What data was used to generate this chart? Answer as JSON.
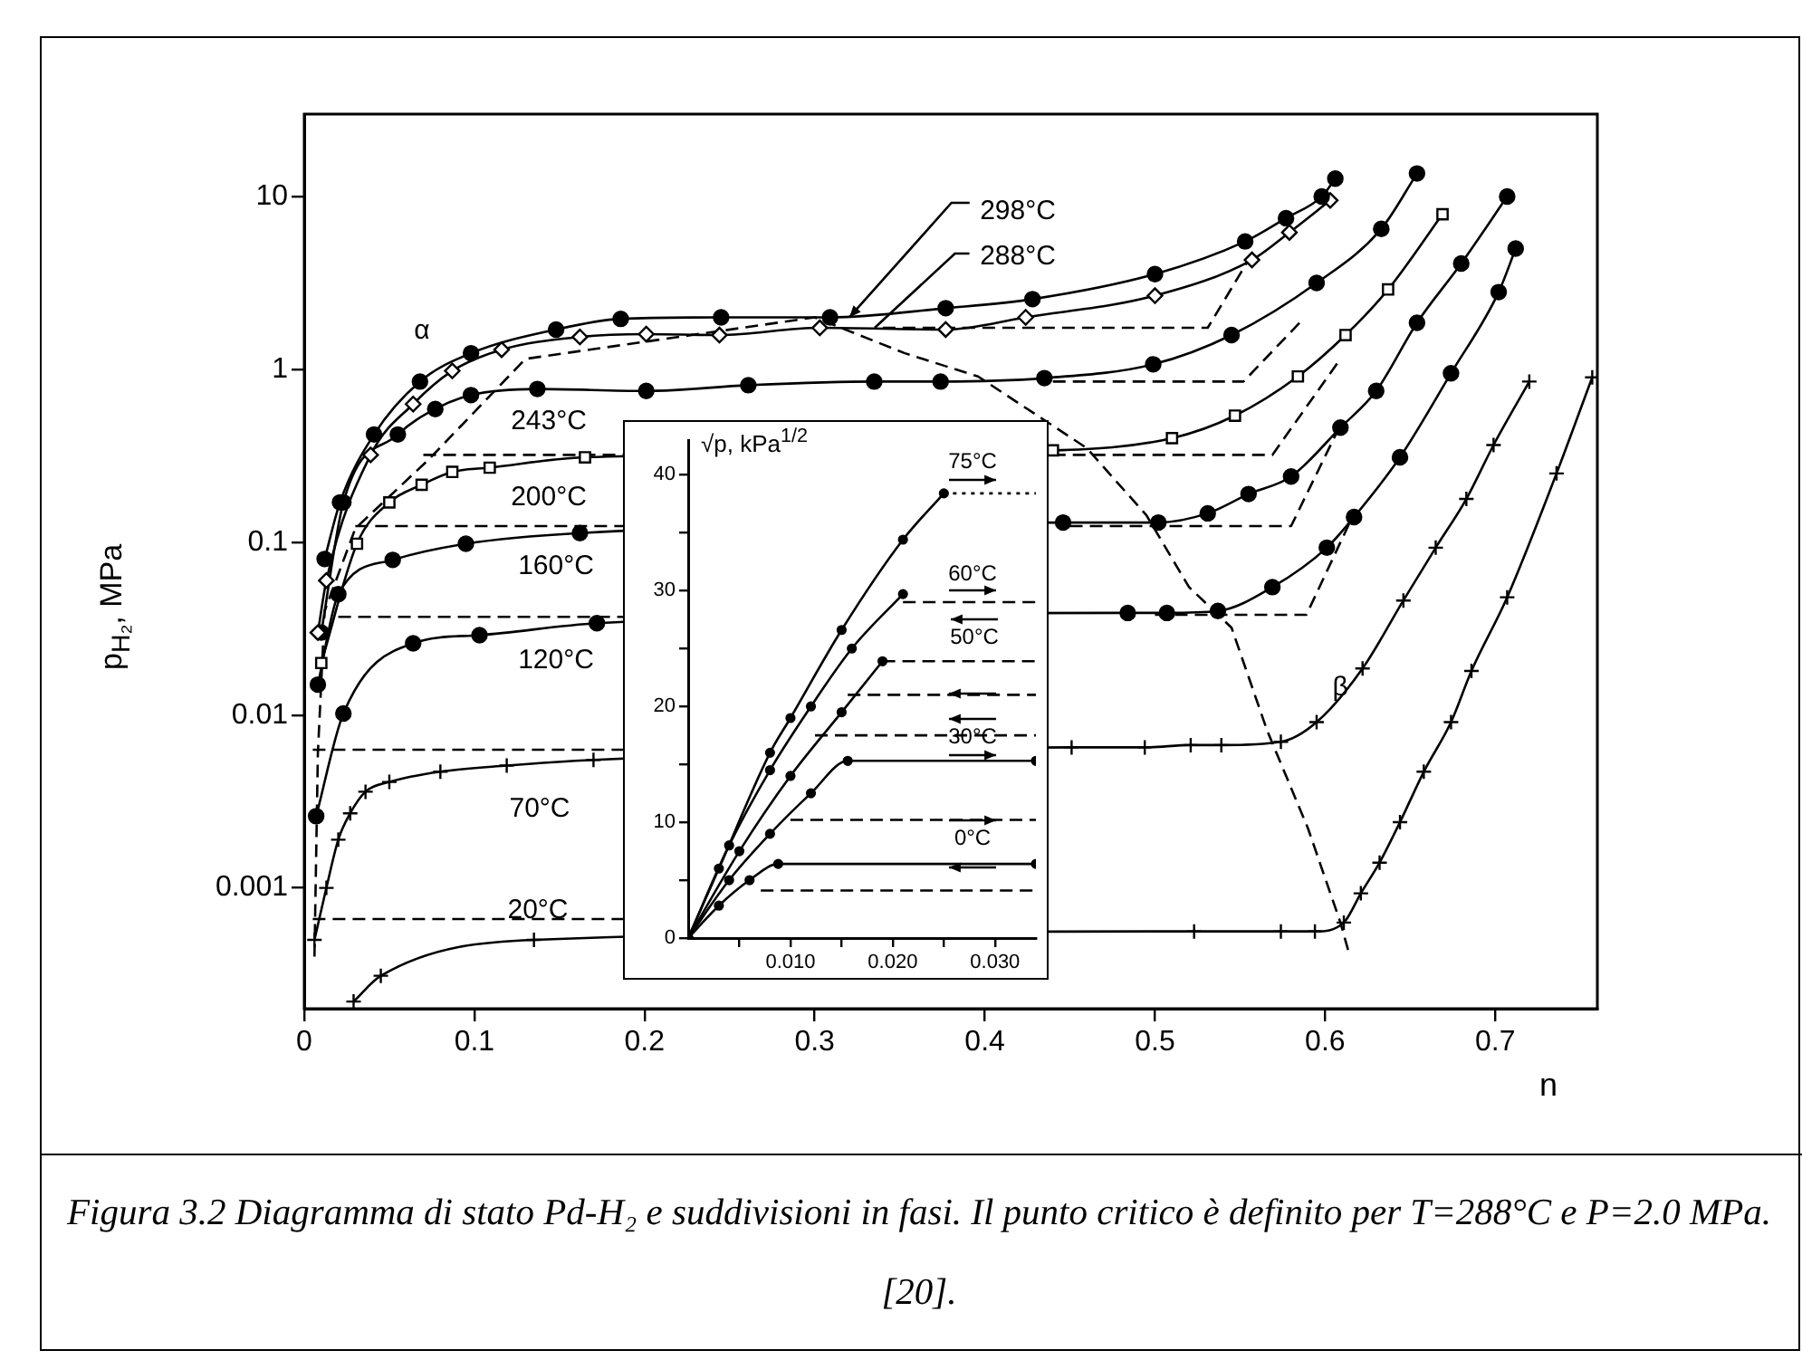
{
  "chart_data": [
    {
      "type": "line",
      "xlabel": "n",
      "ylabel": "p$_{H₂}$, MPa",
      "log": "y",
      "xlim": [
        0,
        0.76
      ],
      "ylim": [
        0.0002,
        30
      ],
      "xticks": [
        0,
        0.1,
        0.2,
        0.3,
        0.4,
        0.5,
        0.6,
        0.7
      ],
      "yticks": [
        0.001,
        0.01,
        0.1,
        1,
        10
      ],
      "series": [
        {
          "color": "#000000",
          "marker": "circle",
          "x": [
            0.012,
            0.021,
            0.041,
            0.068,
            0.098,
            0.148,
            0.186,
            0.245,
            0.309,
            0.377,
            0.428,
            0.5,
            0.553,
            0.577,
            0.598,
            0.606
          ],
          "values": [
            0.08,
            0.17,
            0.42,
            0.85,
            1.24,
            1.7,
            1.96,
            2.0,
            2.0,
            2.26,
            2.55,
            3.56,
            5.5,
            7.5,
            10,
            12.7
          ]
        },
        {
          "color": "#000000",
          "marker": "diamond",
          "x": [
            0.008,
            0.013,
            0.039,
            0.064,
            0.087,
            0.116,
            0.162,
            0.201,
            0.244,
            0.303,
            0.377,
            0.424,
            0.5,
            0.557,
            0.579,
            0.603
          ],
          "values": [
            0.03,
            0.06,
            0.32,
            0.63,
            0.98,
            1.3,
            1.54,
            1.6,
            1.58,
            1.74,
            1.7,
            2.0,
            2.67,
            4.3,
            6.2,
            9.5
          ]
        },
        {
          "color": "#000000",
          "marker": "circle",
          "x": [
            0.01,
            0.023,
            0.055,
            0.077,
            0.098,
            0.137,
            0.201,
            0.261,
            0.335,
            0.374,
            0.435,
            0.499,
            0.545,
            0.595,
            0.633,
            0.654
          ],
          "values": [
            0.03,
            0.17,
            0.42,
            0.59,
            0.71,
            0.77,
            0.75,
            0.81,
            0.85,
            0.85,
            0.89,
            1.07,
            1.58,
            3.16,
            6.5,
            13.6
          ]
        },
        {
          "color": "#000000",
          "marker": "square",
          "x": [
            0.01,
            0.031,
            0.05,
            0.069,
            0.087,
            0.109,
            0.165,
            0.44,
            0.51,
            0.547,
            0.584,
            0.612,
            0.637,
            0.669
          ],
          "values": [
            0.02,
            0.098,
            0.17,
            0.215,
            0.255,
            0.27,
            0.31,
            0.34,
            0.4,
            0.54,
            0.91,
            1.58,
            2.9,
            7.9
          ]
        },
        {
          "color": "#000000",
          "marker": "circle",
          "x": [
            0.008,
            0.02,
            0.052,
            0.095,
            0.162,
            0.446,
            0.502,
            0.531,
            0.555,
            0.58,
            0.609,
            0.63,
            0.654,
            0.68,
            0.707
          ],
          "values": [
            0.015,
            0.05,
            0.079,
            0.098,
            0.113,
            0.13,
            0.13,
            0.147,
            0.19,
            0.24,
            0.46,
            0.75,
            1.86,
            4.1,
            10
          ]
        },
        {
          "color": "#000000",
          "marker": "circle",
          "x": [
            0.007,
            0.023,
            0.064,
            0.103,
            0.172,
            0.484,
            0.507,
            0.537,
            0.569,
            0.601,
            0.617,
            0.644,
            0.674,
            0.702,
            0.712
          ],
          "values": [
            0.0026,
            0.0102,
            0.026,
            0.029,
            0.034,
            0.039,
            0.039,
            0.04,
            0.055,
            0.093,
            0.14,
            0.31,
            0.95,
            2.8,
            5
          ]
        },
        {
          "color": "#000000",
          "marker": "cross",
          "x": [
            0.006,
            0.013,
            0.02,
            0.027,
            0.036,
            0.05,
            0.08,
            0.119,
            0.17,
            0.451,
            0.494,
            0.521,
            0.539,
            0.574,
            0.595,
            0.622,
            0.646,
            0.665,
            0.683,
            0.699,
            0.72
          ],
          "values": [
            0.0005,
            0.001,
            0.0019,
            0.0027,
            0.0036,
            0.0041,
            0.0047,
            0.0051,
            0.0055,
            0.0065,
            0.0065,
            0.0067,
            0.0067,
            0.007,
            0.0091,
            0.0186,
            0.046,
            0.093,
            0.178,
            0.365,
            0.85
          ]
        },
        {
          "color": "#000000",
          "marker": "cross",
          "x": [
            0.029,
            0.045,
            0.135,
            0.523,
            0.574,
            0.594,
            0.611,
            0.621,
            0.632,
            0.644,
            0.658,
            0.674,
            0.686,
            0.707,
            0.736,
            0.757
          ],
          "values": [
            0.00022,
            0.00031,
            0.0005,
            0.00056,
            0.00056,
            0.00056,
            0.00063,
            0.00093,
            0.0014,
            0.0024,
            0.0047,
            0.0091,
            0.018,
            0.048,
            0.25,
            0.9
          ]
        },
        {
          "color": "#000000",
          "marker": "none",
          "line_style": "dashed",
          "x": [
            0.006,
            0.008,
            0.012,
            0.03,
            0.073,
            0.13,
            0.3,
            0.353,
            0.396,
            0.46,
            0.495,
            0.52,
            0.545,
            0.566,
            0.59,
            0.609,
            0.614
          ],
          "values": [
            0.0004,
            0.006,
            0.04,
            0.12,
            0.3,
            1.15,
            2.0,
            1.24,
            0.91,
            0.35,
            0.143,
            0.055,
            0.032,
            0.0081,
            0.0022,
            0.00063,
            0.00042
          ]
        },
        {
          "color": "#000000",
          "marker": "none",
          "line_style": "dashed",
          "x": [
            0.005,
            0.19
          ],
          "values": [
            0.00066,
            0.00066
          ]
        },
        {
          "color": "#000000",
          "marker": "none",
          "line_style": "dashed",
          "x": [
            0.005,
            0.19
          ],
          "values": [
            0.0063,
            0.0063
          ]
        },
        {
          "color": "#000000",
          "marker": "none",
          "line_style": "dashed",
          "x": [
            0.02,
            0.19
          ],
          "values": [
            0.037,
            0.037
          ]
        },
        {
          "color": "#000000",
          "marker": "none",
          "line_style": "dashed",
          "x": [
            0.5,
            0.589,
            0.616
          ],
          "values": [
            0.038,
            0.038,
            0.14
          ]
        },
        {
          "color": "#000000",
          "marker": "none",
          "line_style": "dashed",
          "x": [
            0.03,
            0.19
          ],
          "values": [
            0.124,
            0.124
          ]
        },
        {
          "color": "#000000",
          "marker": "none",
          "line_style": "dashed",
          "x": [
            0.45,
            0.58,
            0.61
          ],
          "values": [
            0.124,
            0.124,
            0.5
          ]
        },
        {
          "color": "#000000",
          "marker": "none",
          "line_style": "dashed",
          "x": [
            0.07,
            0.19
          ],
          "values": [
            0.32,
            0.32
          ]
        },
        {
          "color": "#000000",
          "marker": "none",
          "line_style": "dashed",
          "x": [
            0.44,
            0.569,
            0.609
          ],
          "values": [
            0.32,
            0.32,
            1.15
          ]
        },
        {
          "color": "#000000",
          "marker": "none",
          "line_style": "dashed",
          "x": [
            0.44,
            0.552,
            0.585
          ],
          "values": [
            0.85,
            0.85,
            1.86
          ]
        },
        {
          "color": "#000000",
          "marker": "none",
          "line_style": "dashed",
          "x": [
            0.34,
            0.531,
            0.555
          ],
          "values": [
            1.74,
            1.74,
            4.3
          ]
        }
      ],
      "annotations": [
        {
          "text": "298°C",
          "x": 0.32,
          "y": 2.0
        },
        {
          "text": "288°C",
          "x": 0.335,
          "y": 1.74
        },
        "243°C",
        "200°C",
        "160°C",
        "120°C",
        "70°C",
        "20°C",
        "α",
        "β",
        "Figura 3.2 Diagramma di stato Pd-H₂ e suddivisioni in fasi. Il punto critico è definito per T=288°C e P=2.0 MPa. [20]."
      ]
    },
    {
      "type": "line",
      "ylabel": "√p, kPa$^{1/2}$",
      "xlim": [
        0,
        0.034
      ],
      "ylim": [
        0,
        43
      ],
      "xticks": [
        {
          "value": 0.005,
          "label": null
        },
        {
          "value": 0.01,
          "label": "0.010"
        },
        {
          "value": 0.015,
          "label": null
        },
        {
          "value": 0.02,
          "label": "0.020"
        },
        {
          "value": 0.025,
          "label": null
        },
        {
          "value": 0.03,
          "label": "0.030"
        }
      ],
      "yticks": [
        0,
        {
          "value": 5,
          "label": null
        },
        10,
        {
          "value": 15,
          "label": null
        },
        20,
        {
          "value": 25,
          "label": null
        },
        30,
        {
          "value": 35,
          "label": null
        },
        40
      ],
      "series": [
        {
          "color": "#000000",
          "marker": "circle",
          "x": [
            0,
            0.003,
            0.008,
            0.01,
            0.015,
            0.021,
            0.025
          ],
          "values": [
            0,
            6,
            16,
            19,
            26.6,
            34.4,
            38.4
          ]
        },
        {
          "color": "#000000",
          "marker": "none",
          "line_style": "dotted",
          "x": [
            0.025,
            0.034
          ],
          "values": [
            38.4,
            38.4
          ]
        },
        {
          "color": "#000000",
          "marker": "circle",
          "x": [
            0,
            0.004,
            0.008,
            0.012,
            0.016,
            0.021
          ],
          "values": [
            0,
            8,
            14.5,
            20,
            25,
            29.7
          ]
        },
        {
          "color": "#000000",
          "marker": "none",
          "line_style": "dashed",
          "x": [
            0.021,
            0.034
          ],
          "values": [
            29,
            29
          ]
        },
        {
          "color": "#000000",
          "marker": "circle",
          "x": [
            0,
            0.005,
            0.01,
            0.015,
            0.019
          ],
          "values": [
            0,
            7.5,
            14,
            19.5,
            23.9
          ]
        },
        {
          "color": "#000000",
          "marker": "none",
          "line_style": "dashed",
          "x": [
            0.019,
            0.034
          ],
          "values": [
            23.9,
            23.9
          ]
        },
        {
          "color": "#000000",
          "marker": "none",
          "line_style": "dashed",
          "x": [
            0.0156,
            0.034
          ],
          "values": [
            21,
            21
          ]
        },
        {
          "color": "#000000",
          "marker": "none",
          "line_style": "dashed",
          "x": [
            0.0124,
            0.034
          ],
          "values": [
            17.5,
            17.5
          ]
        },
        {
          "color": "#000000",
          "marker": "circle",
          "x": [
            0,
            0.004,
            0.008,
            0.012,
            0.0156,
            0.034
          ],
          "values": [
            0,
            5,
            9,
            12.5,
            15.3,
            15.3
          ]
        },
        {
          "color": "#000000",
          "marker": "none",
          "line_style": "dashed",
          "x": [
            0.01,
            0.034
          ],
          "values": [
            10.2,
            10.2
          ]
        },
        {
          "color": "#000000",
          "marker": "circle",
          "x": [
            0,
            0.003,
            0.006,
            0.0088,
            0.034
          ],
          "values": [
            0,
            2.8,
            5,
            6.4,
            6.4
          ]
        },
        {
          "color": "#000000",
          "marker": "none",
          "line_style": "dashed",
          "x": [
            0.0071,
            0.034
          ],
          "values": [
            4.1,
            4.1
          ]
        }
      ],
      "annotations": [
        "75°C",
        "60°C",
        "50°C",
        "30°C",
        "0°C"
      ]
    }
  ]
}
